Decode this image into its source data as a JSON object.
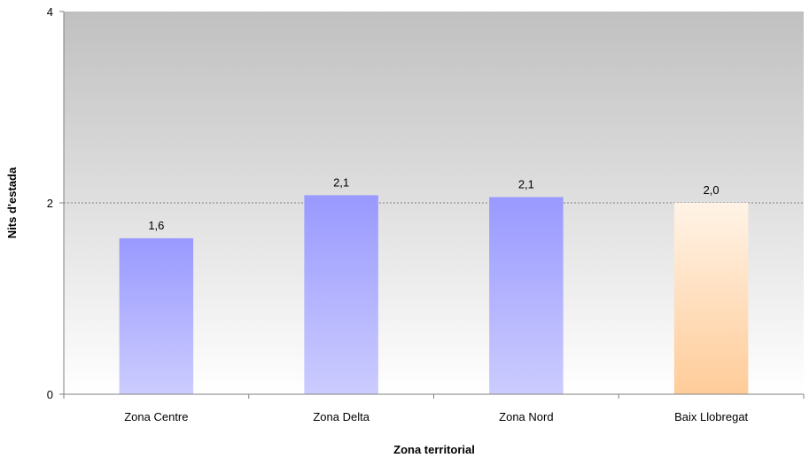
{
  "chart_data": {
    "type": "bar",
    "categories": [
      "Zona Centre",
      "Zona Delta",
      "Zona Nord",
      "Baix Llobregat"
    ],
    "values": [
      1.63,
      2.08,
      2.06,
      2.0
    ],
    "data_labels": [
      "1,6",
      "2,1",
      "2,1",
      "2,0"
    ],
    "title": "",
    "xlabel": "Zona territorial",
    "ylabel": "Nits d'estada",
    "ylim": [
      0,
      4
    ],
    "yticks": [
      0,
      2,
      4
    ],
    "ytick_labels": [
      "0",
      "2",
      "4"
    ],
    "grid": "horizontal dotted at 2",
    "legend": "none",
    "colors": {
      "bar_top": "#9999ff",
      "bar_bottom": "#ccccff",
      "highlight_top": "#fff3e6",
      "highlight_bottom": "#ffcc99",
      "plot_top": "#c0c0c0",
      "plot_bottom": "#ffffff"
    },
    "highlight_category": "Baix Llobregat"
  }
}
